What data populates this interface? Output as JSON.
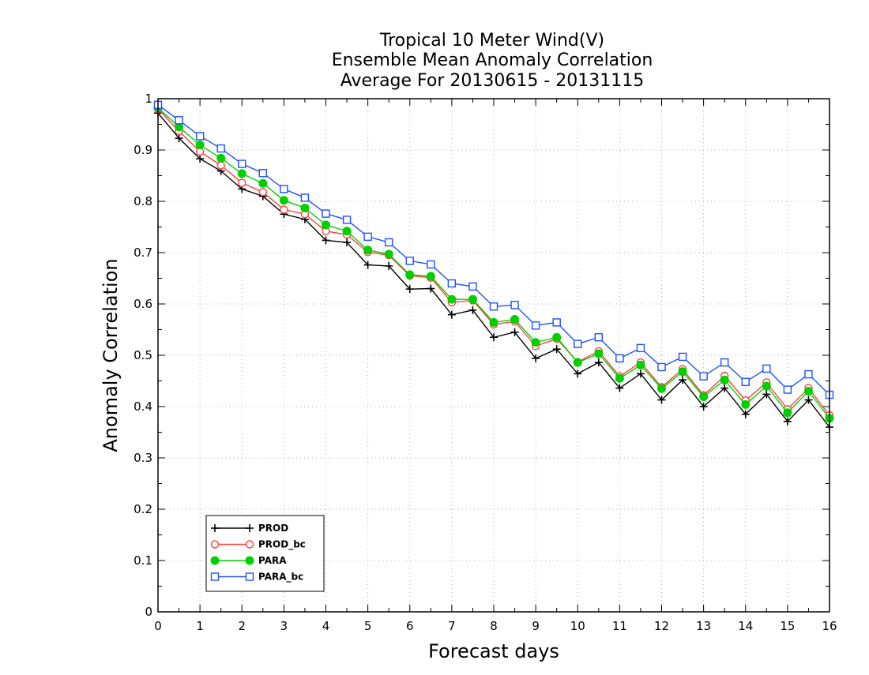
{
  "chart_data": {
    "type": "line",
    "title_lines": [
      "Tropical 10 Meter Wind(V)",
      "Ensemble Mean Anomaly Correlation",
      "Average For 20130615 - 20131115"
    ],
    "xlabel": "Forecast days",
    "ylabel": "Anomaly Correlation",
    "xlim": [
      0,
      16
    ],
    "ylim": [
      0,
      1
    ],
    "x_ticks": [
      "0",
      "1",
      "2",
      "3",
      "4",
      "5",
      "6",
      "7",
      "8",
      "9",
      "10",
      "11",
      "12",
      "13",
      "14",
      "15",
      "16"
    ],
    "y_ticks": [
      "0",
      "0.1",
      "0.2",
      "0.3",
      "0.4",
      "0.5",
      "0.6",
      "0.7",
      "0.8",
      "0.9",
      "1"
    ],
    "grid": true,
    "legend_position": "bottom-left",
    "x": [
      0,
      0.5,
      1,
      1.5,
      2,
      2.5,
      3,
      3.5,
      4,
      4.5,
      5,
      5.5,
      6,
      6.5,
      7,
      7.5,
      8,
      8.5,
      9,
      9.5,
      10,
      10.5,
      11,
      11.5,
      12,
      12.5,
      13,
      13.5,
      14,
      14.5,
      15,
      15.5,
      16
    ],
    "series": [
      {
        "name": "PROD",
        "color": "#000000",
        "marker": "plus",
        "values": [
          0.972,
          0.923,
          0.883,
          0.859,
          0.824,
          0.81,
          0.775,
          0.765,
          0.724,
          0.72,
          0.676,
          0.674,
          0.629,
          0.63,
          0.579,
          0.588,
          0.535,
          0.545,
          0.494,
          0.512,
          0.464,
          0.486,
          0.436,
          0.464,
          0.413,
          0.452,
          0.4,
          0.436,
          0.385,
          0.424,
          0.371,
          0.413,
          0.36
        ]
      },
      {
        "name": "PROD_bc",
        "color": "#ff4040",
        "marker": "open-circle",
        "values": [
          0.98,
          0.937,
          0.897,
          0.87,
          0.836,
          0.818,
          0.784,
          0.775,
          0.742,
          0.735,
          0.701,
          0.695,
          0.655,
          0.651,
          0.603,
          0.607,
          0.56,
          0.566,
          0.518,
          0.532,
          0.487,
          0.508,
          0.459,
          0.486,
          0.438,
          0.473,
          0.422,
          0.46,
          0.412,
          0.447,
          0.395,
          0.436,
          0.383
        ]
      },
      {
        "name": "PARA",
        "color": "#00d000",
        "marker": "filled-circle",
        "values": [
          0.982,
          0.945,
          0.91,
          0.884,
          0.854,
          0.835,
          0.802,
          0.787,
          0.754,
          0.742,
          0.705,
          0.697,
          0.657,
          0.654,
          0.609,
          0.609,
          0.564,
          0.57,
          0.525,
          0.535,
          0.486,
          0.503,
          0.455,
          0.481,
          0.435,
          0.468,
          0.419,
          0.452,
          0.404,
          0.44,
          0.388,
          0.43,
          0.377
        ]
      },
      {
        "name": "PARA_bc",
        "color": "#2050ff",
        "marker": "open-square",
        "values": [
          0.988,
          0.958,
          0.927,
          0.903,
          0.873,
          0.855,
          0.824,
          0.807,
          0.776,
          0.764,
          0.731,
          0.72,
          0.684,
          0.677,
          0.64,
          0.634,
          0.595,
          0.598,
          0.558,
          0.564,
          0.522,
          0.535,
          0.494,
          0.514,
          0.477,
          0.497,
          0.459,
          0.486,
          0.448,
          0.474,
          0.433,
          0.463,
          0.423
        ]
      }
    ]
  }
}
